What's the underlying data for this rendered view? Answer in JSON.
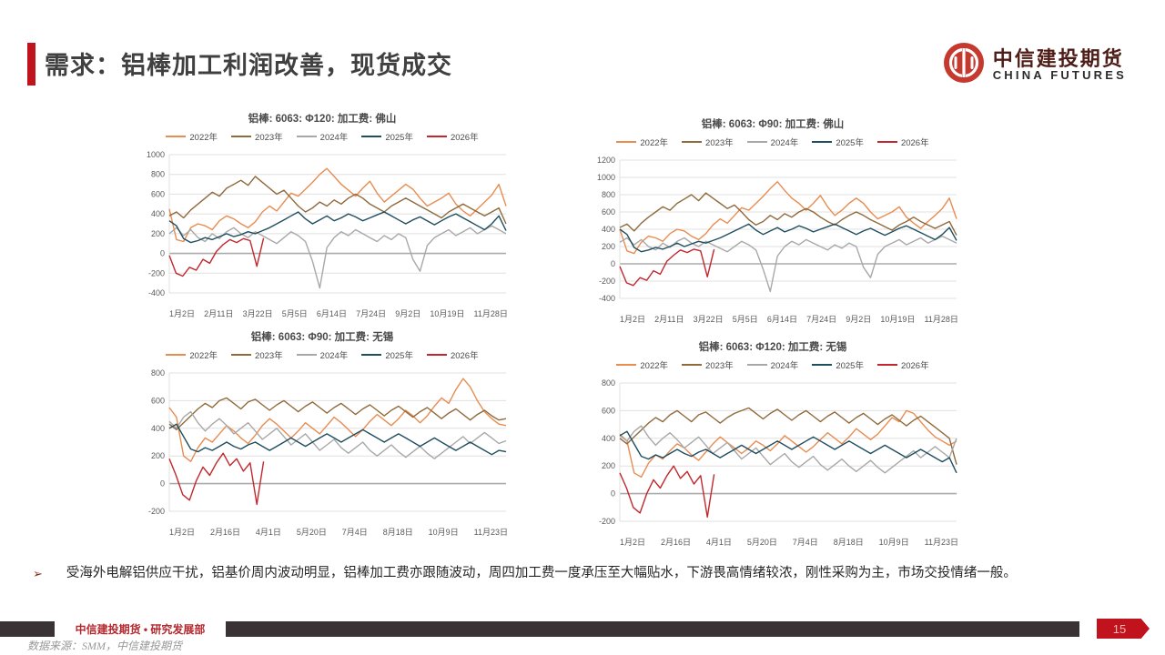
{
  "page": {
    "title": "需求：铝棒加工利润改善，现货成交"
  },
  "logo": {
    "cn": "中信建投期货",
    "en": "CHINA FUTURES",
    "icon": "citic-circle-logo",
    "brand_red": "#c5392f"
  },
  "bullet": {
    "marker": "➢",
    "text": "受海外电解铝供应干扰，铝基价周内波动明显，铝棒加工费亦跟随波动，周四加工费一度承压至大幅贴水，下游畏高情绪较浓，刚性采购为主，市场交投情绪一般。"
  },
  "footer": {
    "dept": "中信建投期货 • 研究发展部",
    "source": "数据来源：SMM，中信建投期货",
    "page_number": "15"
  },
  "colors": {
    "accent_red": "#c0131e",
    "grid": "#e0e0e0",
    "zero_line": "#ababab",
    "axis_text": "#595959"
  },
  "chart_data": [
    {
      "type": "line",
      "title": "铝棒: 6063: Φ120: 加工费: 佛山",
      "ylim": [
        -400,
        1000
      ],
      "yticks": [
        1000,
        800,
        600,
        400,
        200,
        0,
        -200,
        -400
      ],
      "x_labels": [
        "1月2日",
        "2月11日",
        "3月22日",
        "5月5日",
        "6月14日",
        "7月24日",
        "9月2日",
        "10月19日",
        "11月28日"
      ],
      "series": [
        {
          "name": "2022年",
          "color": "#e88c51",
          "span": 1,
          "values": [
            450,
            140,
            120,
            260,
            300,
            280,
            240,
            330,
            380,
            350,
            300,
            260,
            320,
            420,
            480,
            430,
            520,
            610,
            580,
            650,
            720,
            800,
            860,
            780,
            700,
            640,
            580,
            660,
            730,
            610,
            520,
            580,
            640,
            700,
            650,
            560,
            480,
            520,
            560,
            610,
            500,
            430,
            380,
            450,
            520,
            590,
            700,
            480
          ]
        },
        {
          "name": "2023年",
          "color": "#8f6a3b",
          "span": 1,
          "values": [
            380,
            420,
            360,
            440,
            500,
            560,
            620,
            580,
            660,
            700,
            740,
            690,
            780,
            720,
            660,
            600,
            640,
            560,
            480,
            420,
            460,
            520,
            480,
            540,
            500,
            560,
            600,
            560,
            500,
            460,
            420,
            480,
            520,
            560,
            520,
            480,
            440,
            400,
            360,
            420,
            460,
            500,
            460,
            420,
            380,
            420,
            460,
            300
          ]
        },
        {
          "name": "2024年",
          "color": "#a8a8a8",
          "span": 1,
          "values": [
            200,
            260,
            180,
            240,
            160,
            120,
            200,
            150,
            220,
            260,
            200,
            160,
            220,
            180,
            140,
            100,
            160,
            220,
            180,
            120,
            -80,
            -350,
            60,
            160,
            220,
            180,
            240,
            200,
            160,
            120,
            180,
            140,
            200,
            160,
            -60,
            -180,
            80,
            160,
            200,
            240,
            180,
            220,
            260,
            200,
            240,
            280,
            240,
            200
          ]
        },
        {
          "name": "2025年",
          "color": "#1f4e5f",
          "span": 1,
          "values": [
            330,
            280,
            150,
            110,
            130,
            160,
            140,
            170,
            200,
            170,
            190,
            220,
            200,
            230,
            260,
            300,
            340,
            380,
            420,
            350,
            300,
            340,
            380,
            330,
            360,
            400,
            370,
            330,
            360,
            390,
            420,
            380,
            340,
            300,
            340,
            370,
            330,
            290,
            330,
            370,
            400,
            360,
            320,
            280,
            240,
            300,
            380,
            230
          ]
        },
        {
          "name": "2026年",
          "color": "#c1272d",
          "span": 0.28,
          "values": [
            -20,
            -200,
            -230,
            -140,
            -170,
            -60,
            -100,
            20,
            90,
            140,
            110,
            150,
            130,
            -130,
            155
          ]
        }
      ]
    },
    {
      "type": "line",
      "title": "铝棒: 6063: Φ90: 加工费: 佛山",
      "ylim": [
        -400,
        1200
      ],
      "yticks": [
        1200,
        1000,
        800,
        600,
        400,
        200,
        0,
        -200,
        -400
      ],
      "x_labels": [
        "1月2日",
        "2月11日",
        "3月22日",
        "5月5日",
        "6月14日",
        "7月24日",
        "9月2日",
        "10月19日",
        "11月28日"
      ],
      "series": [
        {
          "name": "2022年",
          "color": "#e88c51",
          "span": 1,
          "values": [
            400,
            150,
            120,
            250,
            320,
            300,
            260,
            350,
            400,
            380,
            320,
            280,
            350,
            450,
            520,
            470,
            560,
            650,
            620,
            700,
            780,
            870,
            950,
            850,
            760,
            700,
            620,
            700,
            790,
            660,
            560,
            620,
            700,
            760,
            700,
            600,
            520,
            560,
            600,
            660,
            540,
            470,
            410,
            490,
            560,
            640,
            760,
            520
          ]
        },
        {
          "name": "2023年",
          "color": "#8f6a3b",
          "span": 1,
          "values": [
            420,
            460,
            380,
            470,
            540,
            600,
            660,
            620,
            700,
            750,
            800,
            730,
            820,
            760,
            700,
            640,
            680,
            600,
            510,
            450,
            490,
            560,
            510,
            580,
            540,
            600,
            640,
            600,
            540,
            490,
            450,
            510,
            560,
            600,
            560,
            510,
            470,
            430,
            390,
            450,
            490,
            540,
            490,
            450,
            410,
            450,
            490,
            330
          ]
        },
        {
          "name": "2024年",
          "color": "#a8a8a8",
          "span": 1,
          "values": [
            250,
            300,
            220,
            280,
            200,
            160,
            240,
            190,
            260,
            300,
            240,
            200,
            260,
            220,
            180,
            140,
            200,
            260,
            220,
            160,
            -60,
            -320,
            90,
            200,
            260,
            220,
            280,
            240,
            200,
            160,
            220,
            180,
            240,
            200,
            -40,
            -160,
            110,
            200,
            240,
            280,
            220,
            260,
            300,
            240,
            280,
            320,
            280,
            240
          ]
        },
        {
          "name": "2025年",
          "color": "#1f4e5f",
          "span": 1,
          "values": [
            400,
            340,
            190,
            140,
            160,
            190,
            170,
            200,
            240,
            200,
            230,
            260,
            240,
            270,
            300,
            340,
            380,
            420,
            460,
            390,
            340,
            380,
            420,
            370,
            400,
            440,
            410,
            370,
            400,
            430,
            460,
            420,
            380,
            340,
            380,
            410,
            370,
            330,
            370,
            410,
            440,
            400,
            360,
            320,
            280,
            340,
            420,
            270
          ]
        },
        {
          "name": "2026年",
          "color": "#c1272d",
          "span": 0.28,
          "values": [
            -30,
            -220,
            -250,
            -160,
            -190,
            -80,
            -120,
            30,
            100,
            160,
            130,
            170,
            150,
            -150,
            170
          ]
        }
      ]
    },
    {
      "type": "line",
      "title": "铝棒: 6063: Φ90: 加工费: 无锡",
      "ylim": [
        -200,
        800
      ],
      "yticks": [
        800,
        600,
        400,
        200,
        0,
        -200
      ],
      "x_labels": [
        "1月2日",
        "2月16日",
        "4月1日",
        "5月20日",
        "7月4日",
        "8月18日",
        "10月9日",
        "11月23日"
      ],
      "series": [
        {
          "name": "2022年",
          "color": "#e88c51",
          "span": 1,
          "values": [
            550,
            480,
            200,
            160,
            260,
            330,
            300,
            360,
            420,
            380,
            330,
            290,
            350,
            420,
            470,
            430,
            380,
            330,
            380,
            440,
            400,
            360,
            420,
            480,
            440,
            390,
            340,
            390,
            450,
            500,
            460,
            420,
            470,
            530,
            490,
            440,
            490,
            560,
            620,
            580,
            680,
            760,
            700,
            600,
            520,
            470,
            430,
            420
          ]
        },
        {
          "name": "2023年",
          "color": "#8f6a3b",
          "span": 1,
          "values": [
            430,
            390,
            440,
            490,
            540,
            580,
            550,
            600,
            620,
            580,
            540,
            590,
            610,
            570,
            530,
            570,
            600,
            560,
            520,
            560,
            590,
            550,
            510,
            550,
            580,
            540,
            500,
            540,
            570,
            530,
            490,
            530,
            560,
            520,
            480,
            520,
            550,
            510,
            470,
            510,
            540,
            500,
            460,
            500,
            530,
            490,
            460,
            470
          ]
        },
        {
          "name": "2024年",
          "color": "#a8a8a8",
          "span": 1,
          "values": [
            450,
            400,
            480,
            520,
            440,
            380,
            430,
            470,
            420,
            360,
            400,
            440,
            380,
            320,
            360,
            400,
            340,
            280,
            320,
            360,
            300,
            240,
            280,
            320,
            260,
            220,
            260,
            300,
            240,
            200,
            240,
            280,
            230,
            190,
            230,
            270,
            220,
            180,
            220,
            260,
            300,
            340,
            290,
            330,
            370,
            330,
            290,
            310
          ]
        },
        {
          "name": "2025年",
          "color": "#1f4e5f",
          "span": 1,
          "values": [
            400,
            430,
            340,
            250,
            230,
            260,
            240,
            270,
            300,
            270,
            250,
            280,
            300,
            270,
            240,
            270,
            300,
            330,
            300,
            270,
            300,
            330,
            360,
            330,
            300,
            330,
            360,
            390,
            360,
            330,
            300,
            330,
            360,
            330,
            300,
            270,
            300,
            330,
            300,
            270,
            240,
            270,
            300,
            270,
            240,
            210,
            240,
            230
          ]
        },
        {
          "name": "2026年",
          "color": "#c1272d",
          "span": 0.28,
          "values": [
            180,
            60,
            -80,
            -120,
            20,
            120,
            60,
            150,
            220,
            130,
            180,
            90,
            150,
            -150,
            160
          ]
        }
      ]
    },
    {
      "type": "line",
      "title": "铝棒: 6063: Φ120: 加工费: 无锡",
      "ylim": [
        -200,
        800
      ],
      "yticks": [
        800,
        600,
        400,
        200,
        0,
        -200
      ],
      "x_labels": [
        "1月2日",
        "2月16日",
        "4月1日",
        "5月20日",
        "7月4日",
        "8月18日",
        "10月9日",
        "11月23日"
      ],
      "series": [
        {
          "name": "2022年",
          "color": "#e88c51",
          "span": 1,
          "values": [
            430,
            380,
            150,
            120,
            220,
            280,
            250,
            310,
            360,
            330,
            280,
            240,
            300,
            360,
            410,
            370,
            330,
            290,
            330,
            380,
            350,
            310,
            360,
            420,
            380,
            340,
            300,
            340,
            390,
            440,
            400,
            360,
            410,
            470,
            430,
            390,
            430,
            490,
            550,
            520,
            600,
            580,
            520,
            460,
            410,
            380,
            350,
            380
          ]
        },
        {
          "name": "2023年",
          "color": "#8f6a3b",
          "span": 1,
          "values": [
            400,
            360,
            410,
            460,
            510,
            550,
            520,
            570,
            600,
            560,
            520,
            570,
            590,
            550,
            510,
            550,
            580,
            600,
            620,
            580,
            540,
            580,
            610,
            570,
            530,
            570,
            600,
            560,
            520,
            560,
            590,
            550,
            510,
            550,
            580,
            540,
            500,
            540,
            570,
            530,
            490,
            530,
            560,
            520,
            480,
            440,
            400,
            210
          ]
        },
        {
          "name": "2024年",
          "color": "#a8a8a8",
          "span": 1,
          "values": [
            420,
            380,
            450,
            490,
            410,
            350,
            400,
            440,
            390,
            330,
            370,
            410,
            350,
            290,
            330,
            370,
            310,
            250,
            290,
            330,
            270,
            210,
            250,
            290,
            230,
            190,
            230,
            270,
            210,
            170,
            210,
            250,
            200,
            160,
            200,
            240,
            190,
            150,
            190,
            230,
            270,
            310,
            260,
            300,
            340,
            300,
            260,
            400
          ]
        },
        {
          "name": "2025年",
          "color": "#1f4e5f",
          "span": 1,
          "values": [
            420,
            450,
            360,
            270,
            250,
            280,
            260,
            290,
            320,
            290,
            270,
            300,
            320,
            290,
            260,
            290,
            320,
            350,
            320,
            290,
            320,
            350,
            380,
            350,
            320,
            350,
            380,
            410,
            380,
            350,
            320,
            350,
            380,
            350,
            320,
            290,
            320,
            350,
            320,
            290,
            260,
            290,
            320,
            290,
            260,
            230,
            260,
            150
          ]
        },
        {
          "name": "2026年",
          "color": "#c1272d",
          "span": 0.28,
          "values": [
            150,
            40,
            -100,
            -140,
            0,
            100,
            40,
            130,
            200,
            110,
            160,
            70,
            130,
            -170,
            140
          ]
        }
      ]
    }
  ]
}
